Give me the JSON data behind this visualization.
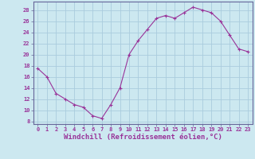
{
  "x": [
    0,
    1,
    2,
    3,
    4,
    5,
    6,
    7,
    8,
    9,
    10,
    11,
    12,
    13,
    14,
    15,
    16,
    17,
    18,
    19,
    20,
    21,
    22,
    23
  ],
  "y": [
    17.5,
    16.0,
    13.0,
    12.0,
    11.0,
    10.5,
    9.0,
    8.5,
    11.0,
    14.0,
    20.0,
    22.5,
    24.5,
    26.5,
    27.0,
    26.5,
    27.5,
    28.5,
    28.0,
    27.5,
    26.0,
    23.5,
    21.0,
    20.5
  ],
  "line_color": "#993399",
  "marker": "+",
  "marker_size": 3,
  "marker_linewidth": 0.8,
  "bg_color": "#cce8f0",
  "grid_color": "#aaccdd",
  "xlabel": "Windchill (Refroidissement éolien,°C)",
  "xlabel_color": "#993399",
  "ylabel_ticks": [
    8,
    10,
    12,
    14,
    16,
    18,
    20,
    22,
    24,
    26,
    28
  ],
  "xlim": [
    -0.5,
    23.5
  ],
  "ylim": [
    7.5,
    29.5
  ],
  "xticks": [
    0,
    1,
    2,
    3,
    4,
    5,
    6,
    7,
    8,
    9,
    10,
    11,
    12,
    13,
    14,
    15,
    16,
    17,
    18,
    19,
    20,
    21,
    22,
    23
  ],
  "tick_label_color": "#993399",
  "tick_label_fontsize": 5.0,
  "xlabel_fontsize": 6.5,
  "line_width": 0.8
}
